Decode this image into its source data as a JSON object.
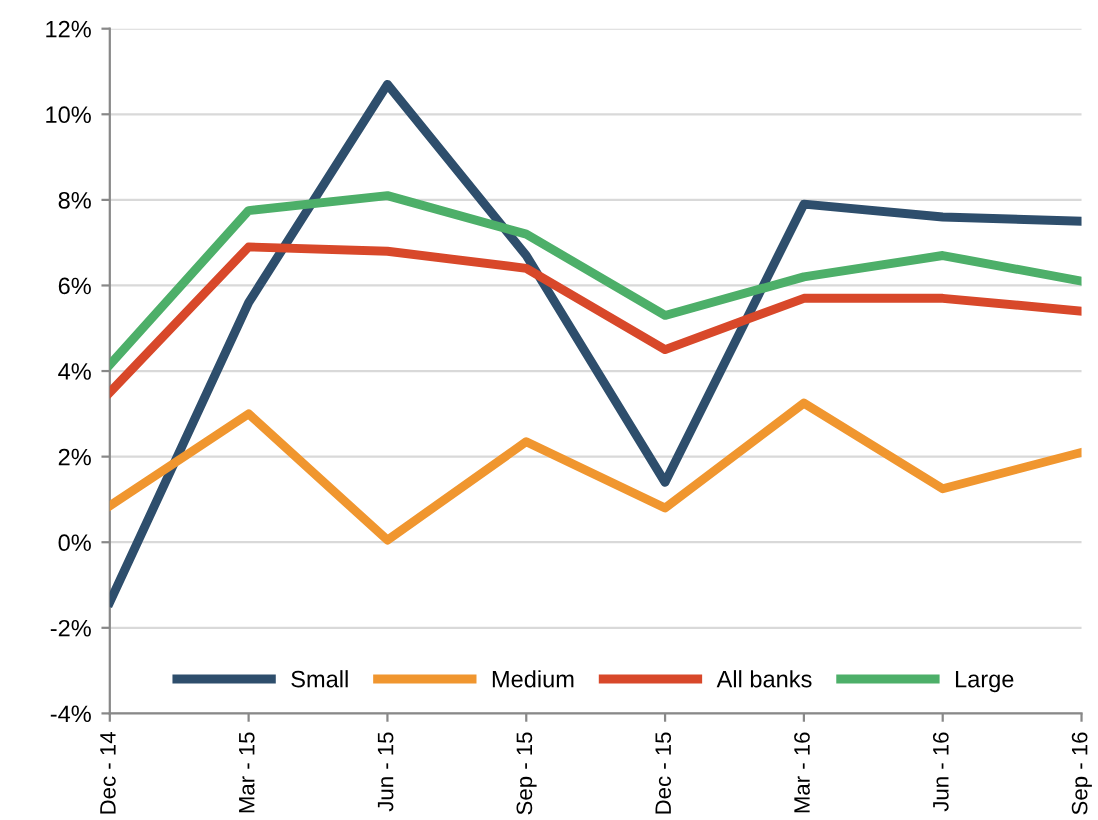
{
  "chart_data": {
    "type": "line",
    "categories": [
      "Dec - 14",
      "Mar - 15",
      "Jun - 15",
      "Sep - 15",
      "Dec - 15",
      "Mar - 16",
      "Jun - 16",
      "Sep - 16"
    ],
    "series": [
      {
        "name": "Small",
        "color": "#2e4e6c",
        "values": [
          -1.4,
          5.6,
          10.7,
          6.7,
          1.4,
          7.9,
          7.6,
          7.5
        ]
      },
      {
        "name": "Medium",
        "color": "#f0962f",
        "values": [
          0.85,
          3.0,
          0.05,
          2.35,
          0.8,
          3.25,
          1.25,
          2.1
        ]
      },
      {
        "name": "All banks",
        "color": "#d8482a",
        "values": [
          3.5,
          6.9,
          6.8,
          6.4,
          4.5,
          5.7,
          5.7,
          5.4
        ]
      },
      {
        "name": "Large",
        "color": "#4daf69",
        "values": [
          4.15,
          7.75,
          8.1,
          7.2,
          5.3,
          6.2,
          6.7,
          6.1
        ]
      }
    ],
    "ylim": [
      -4,
      12
    ],
    "yticks": [
      {
        "value": -4,
        "label": "-4%"
      },
      {
        "value": -2,
        "label": "-2%"
      },
      {
        "value": 0,
        "label": "0%"
      },
      {
        "value": 2,
        "label": "2%"
      },
      {
        "value": 4,
        "label": "4%"
      },
      {
        "value": 6,
        "label": "6%"
      },
      {
        "value": 8,
        "label": "8%"
      },
      {
        "value": 10,
        "label": "10%"
      },
      {
        "value": 12,
        "label": "12%"
      }
    ],
    "grid": "y",
    "legend": "bottom",
    "marker": "none",
    "line_style": "solid"
  }
}
